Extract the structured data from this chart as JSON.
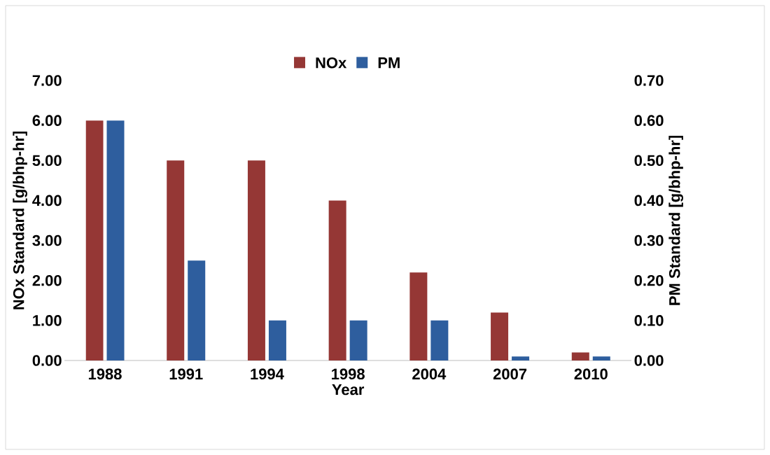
{
  "chart_data": {
    "type": "bar",
    "xlabel": "Year",
    "ylabel": "NOx Standard [g/bhp-hr]",
    "y2label": "PM Standard [g/bhp-hr]",
    "categories": [
      "1988",
      "1991",
      "1994",
      "1998",
      "2004",
      "2007",
      "2010"
    ],
    "series": [
      {
        "name": "NOx",
        "color": "#953735",
        "values": [
          6.0,
          5.0,
          5.0,
          4.0,
          2.2,
          1.2,
          0.2
        ]
      },
      {
        "name": "PM",
        "color": "#2e5e9e",
        "axis": "y2",
        "values": [
          0.6,
          0.25,
          0.1,
          0.1,
          0.1,
          0.01,
          0.01
        ]
      }
    ],
    "ylim": [
      0,
      7
    ],
    "yticks": [
      {
        "value": 0,
        "label": "0.00"
      },
      {
        "value": 1,
        "label": "1.00"
      },
      {
        "value": 2,
        "label": "2.00"
      },
      {
        "value": 3,
        "label": "3.00"
      },
      {
        "value": 4,
        "label": "4.00"
      },
      {
        "value": 5,
        "label": "5.00"
      },
      {
        "value": 6,
        "label": "6.00"
      },
      {
        "value": 7,
        "label": "7.00"
      }
    ],
    "y2lim": [
      0,
      0.7
    ],
    "y2ticks": [
      {
        "value": 0,
        "label": "0.00"
      },
      {
        "value": 0.1,
        "label": "0.10"
      },
      {
        "value": 0.2,
        "label": "0.20"
      },
      {
        "value": 0.3,
        "label": "0.30"
      },
      {
        "value": 0.4,
        "label": "0.40"
      },
      {
        "value": 0.5,
        "label": "0.50"
      },
      {
        "value": 0.6,
        "label": "0.60"
      },
      {
        "value": 0.7,
        "label": "0.70"
      }
    ],
    "legend": "top"
  }
}
